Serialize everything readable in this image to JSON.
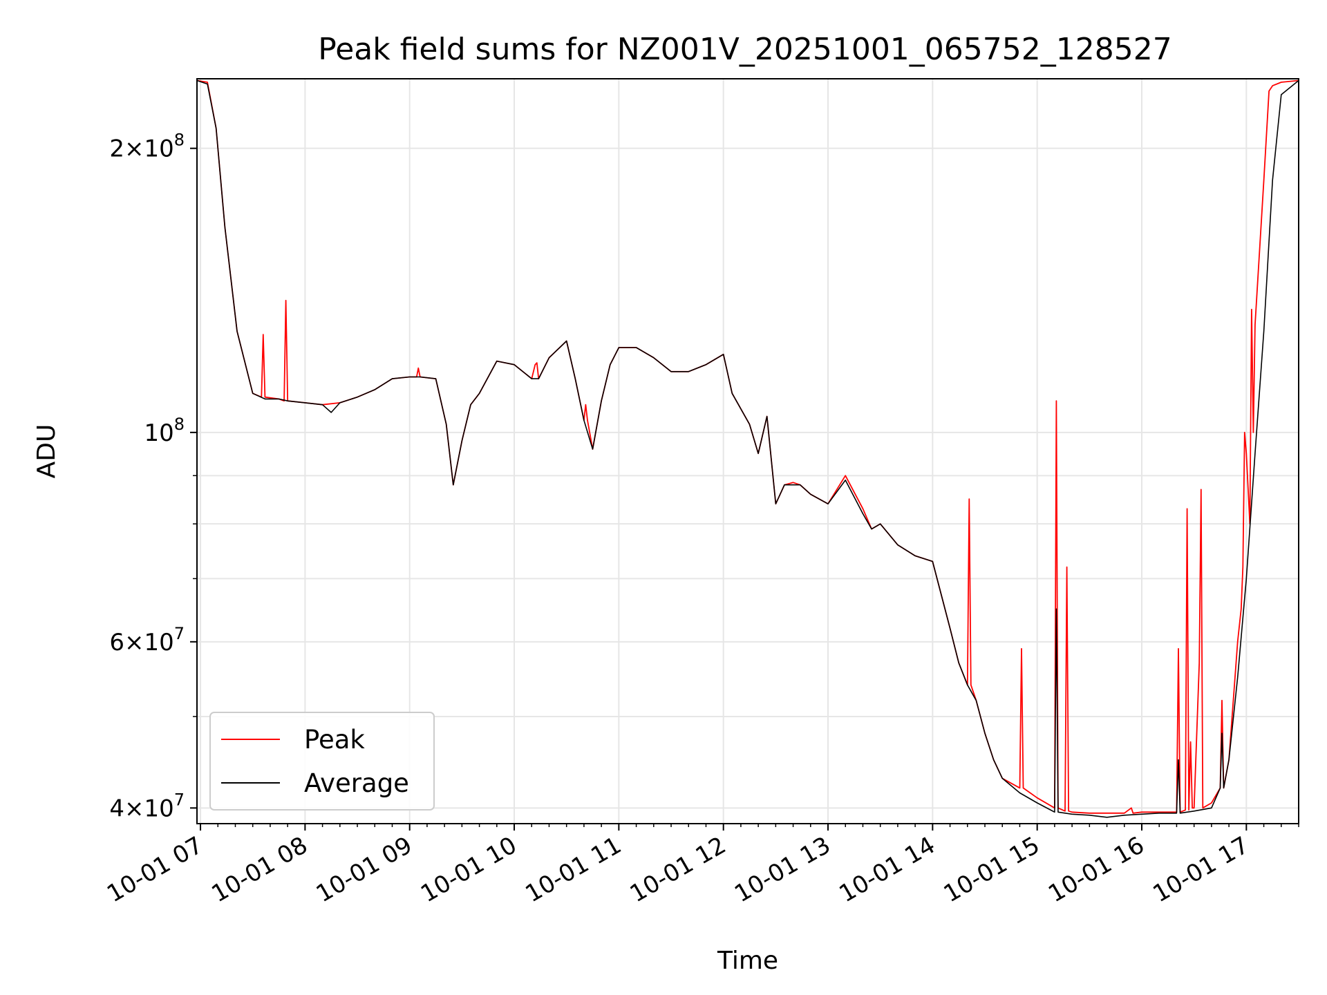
{
  "chart_data": {
    "type": "line",
    "title": "Peak field sums for NZ001V_20251001_065752_128527",
    "xlabel": "Time",
    "ylabel": "ADU",
    "y_scale": "log",
    "ylim": [
      38500000,
      237000000
    ],
    "xlim": [
      "2025-10-01 06:58",
      "2025-10-01 17:30"
    ],
    "grid": true,
    "legend_position": "lower-left",
    "x_ticks": [
      "10-01 07",
      "10-01 08",
      "10-01 09",
      "10-01 10",
      "10-01 11",
      "10-01 12",
      "10-01 13",
      "10-01 14",
      "10-01 15",
      "10-01 16",
      "10-01 17"
    ],
    "y_ticks": [
      {
        "value": 200000000,
        "mantissa": "2",
        "exponent": "8"
      },
      {
        "value": 100000000,
        "mantissa": "",
        "exponent": "8"
      },
      {
        "value": 60000000,
        "mantissa": "6",
        "exponent": "7"
      },
      {
        "value": 40000000,
        "mantissa": "4",
        "exponent": "7"
      }
    ],
    "series": [
      {
        "name": "Peak",
        "color": "#ff0000",
        "x": [
          "06:58",
          "07:04",
          "07:09",
          "07:14",
          "07:21",
          "07:30",
          "07:35",
          "07:36",
          "07:37",
          "07:45",
          "07:48",
          "07:49",
          "07:50",
          "08:00",
          "08:10",
          "08:20",
          "08:30",
          "08:40",
          "08:50",
          "09:00",
          "09:04",
          "09:05",
          "09:06",
          "09:15",
          "09:21",
          "09:25",
          "09:30",
          "09:35",
          "09:40",
          "09:50",
          "10:00",
          "10:10",
          "10:12",
          "10:13",
          "10:14",
          "10:20",
          "10:30",
          "10:35",
          "10:40",
          "10:41",
          "10:42",
          "10:45",
          "10:50",
          "10:55",
          "11:00",
          "11:10",
          "11:20",
          "11:30",
          "11:40",
          "11:50",
          "12:00",
          "12:05",
          "12:15",
          "12:20",
          "12:25",
          "12:30",
          "12:35",
          "12:40",
          "12:44",
          "12:50",
          "13:00",
          "13:10",
          "13:20",
          "13:25",
          "13:30",
          "13:40",
          "13:50",
          "14:00",
          "14:10",
          "14:15",
          "14:20",
          "14:21",
          "14:22",
          "14:25",
          "14:30",
          "14:35",
          "14:40",
          "14:50",
          "14:51",
          "14:52",
          "15:00",
          "15:10",
          "15:11",
          "15:12",
          "15:16",
          "15:17",
          "15:18",
          "15:20",
          "15:30",
          "15:40",
          "15:50",
          "15:54",
          "15:55",
          "16:00",
          "16:10",
          "16:20",
          "16:21",
          "16:22",
          "16:25",
          "16:26",
          "16:27",
          "16:28",
          "16:29",
          "16:30",
          "16:33",
          "16:34",
          "16:35",
          "16:40",
          "16:45",
          "16:46",
          "16:47",
          "16:50",
          "16:55",
          "16:57",
          "16:58",
          "16:59",
          "17:00",
          "17:02",
          "17:03",
          "17:04",
          "17:05",
          "17:10",
          "17:13",
          "17:15",
          "17:20",
          "17:30"
        ],
        "values": [
          236000000,
          235000000,
          210000000,
          165000000,
          128000000,
          110000000,
          109000000,
          127000000,
          109000000,
          108500000,
          108000000,
          138000000,
          108000000,
          107500000,
          107000000,
          107500000,
          109000000,
          111000000,
          114000000,
          114500000,
          114500000,
          117000000,
          114500000,
          114000000,
          102000000,
          88000000,
          98000000,
          107000000,
          110000000,
          119000000,
          118000000,
          114000000,
          118000000,
          118500000,
          114000000,
          120000000,
          125000000,
          114000000,
          103000000,
          107000000,
          103000000,
          96000000,
          108000000,
          118000000,
          123000000,
          123000000,
          120000000,
          116000000,
          116000000,
          118000000,
          121000000,
          110000000,
          102000000,
          95000000,
          104000000,
          84000000,
          88000000,
          88500000,
          88000000,
          86000000,
          84000000,
          90000000,
          83000000,
          79000000,
          80000000,
          76000000,
          74000000,
          73000000,
          62000000,
          57000000,
          54000000,
          85000000,
          54000000,
          52000000,
          48000000,
          45000000,
          43000000,
          42000000,
          59000000,
          42000000,
          41000000,
          40000000,
          108000000,
          40000000,
          39700000,
          72000000,
          39700000,
          39600000,
          39500000,
          39500000,
          39500000,
          40000000,
          39500000,
          39600000,
          39600000,
          39600000,
          59000000,
          39600000,
          39800000,
          83000000,
          39800000,
          47000000,
          40000000,
          40000000,
          57000000,
          87000000,
          40000000,
          40500000,
          42000000,
          52000000,
          42000000,
          45000000,
          60000000,
          65000000,
          72000000,
          100000000,
          95000000,
          80000000,
          135000000,
          100000000,
          130000000,
          185000000,
          230000000,
          233000000,
          235000000,
          236000000
        ]
      },
      {
        "name": "Average",
        "color": "#000000",
        "x": [
          "06:58",
          "07:04",
          "07:09",
          "07:14",
          "07:21",
          "07:30",
          "07:37",
          "07:45",
          "07:50",
          "08:00",
          "08:10",
          "08:15",
          "08:20",
          "08:30",
          "08:40",
          "08:50",
          "09:00",
          "09:06",
          "09:15",
          "09:21",
          "09:25",
          "09:30",
          "09:35",
          "09:40",
          "09:50",
          "10:00",
          "10:10",
          "10:14",
          "10:20",
          "10:30",
          "10:35",
          "10:40",
          "10:45",
          "10:50",
          "10:55",
          "11:00",
          "11:10",
          "11:20",
          "11:30",
          "11:40",
          "11:50",
          "12:00",
          "12:05",
          "12:15",
          "12:20",
          "12:25",
          "12:30",
          "12:35",
          "12:44",
          "12:50",
          "13:00",
          "13:10",
          "13:20",
          "13:25",
          "13:30",
          "13:40",
          "13:50",
          "14:00",
          "14:10",
          "14:15",
          "14:20",
          "14:25",
          "14:30",
          "14:35",
          "14:40",
          "14:50",
          "15:00",
          "15:10",
          "15:11",
          "15:12",
          "15:20",
          "15:30",
          "15:40",
          "15:50",
          "16:00",
          "16:10",
          "16:20",
          "16:21",
          "16:22",
          "16:30",
          "16:40",
          "16:45",
          "16:46",
          "16:47",
          "16:50",
          "16:55",
          "17:00",
          "17:05",
          "17:10",
          "17:15",
          "17:20",
          "17:30"
        ],
        "values": [
          236000000,
          234000000,
          210000000,
          165000000,
          128000000,
          110000000,
          108500000,
          108500000,
          108000000,
          107500000,
          107000000,
          105000000,
          107500000,
          109000000,
          111000000,
          114000000,
          114500000,
          114500000,
          114000000,
          102000000,
          88000000,
          98000000,
          107000000,
          110000000,
          119000000,
          118000000,
          114000000,
          114000000,
          120000000,
          125000000,
          114000000,
          103000000,
          96000000,
          108000000,
          118000000,
          123000000,
          123000000,
          120000000,
          116000000,
          116000000,
          118000000,
          121000000,
          110000000,
          102000000,
          95000000,
          104000000,
          84000000,
          88000000,
          88000000,
          86000000,
          84000000,
          89000000,
          82000000,
          79000000,
          80000000,
          76000000,
          74000000,
          73000000,
          62000000,
          57000000,
          54000000,
          52000000,
          48000000,
          45000000,
          43000000,
          41500000,
          40500000,
          39600000,
          65000000,
          39600000,
          39400000,
          39300000,
          39100000,
          39300000,
          39400000,
          39500000,
          39500000,
          45000000,
          39500000,
          39700000,
          40000000,
          42000000,
          48000000,
          42000000,
          45000000,
          55000000,
          70000000,
          95000000,
          128000000,
          185000000,
          228000000,
          236000000
        ]
      }
    ]
  }
}
